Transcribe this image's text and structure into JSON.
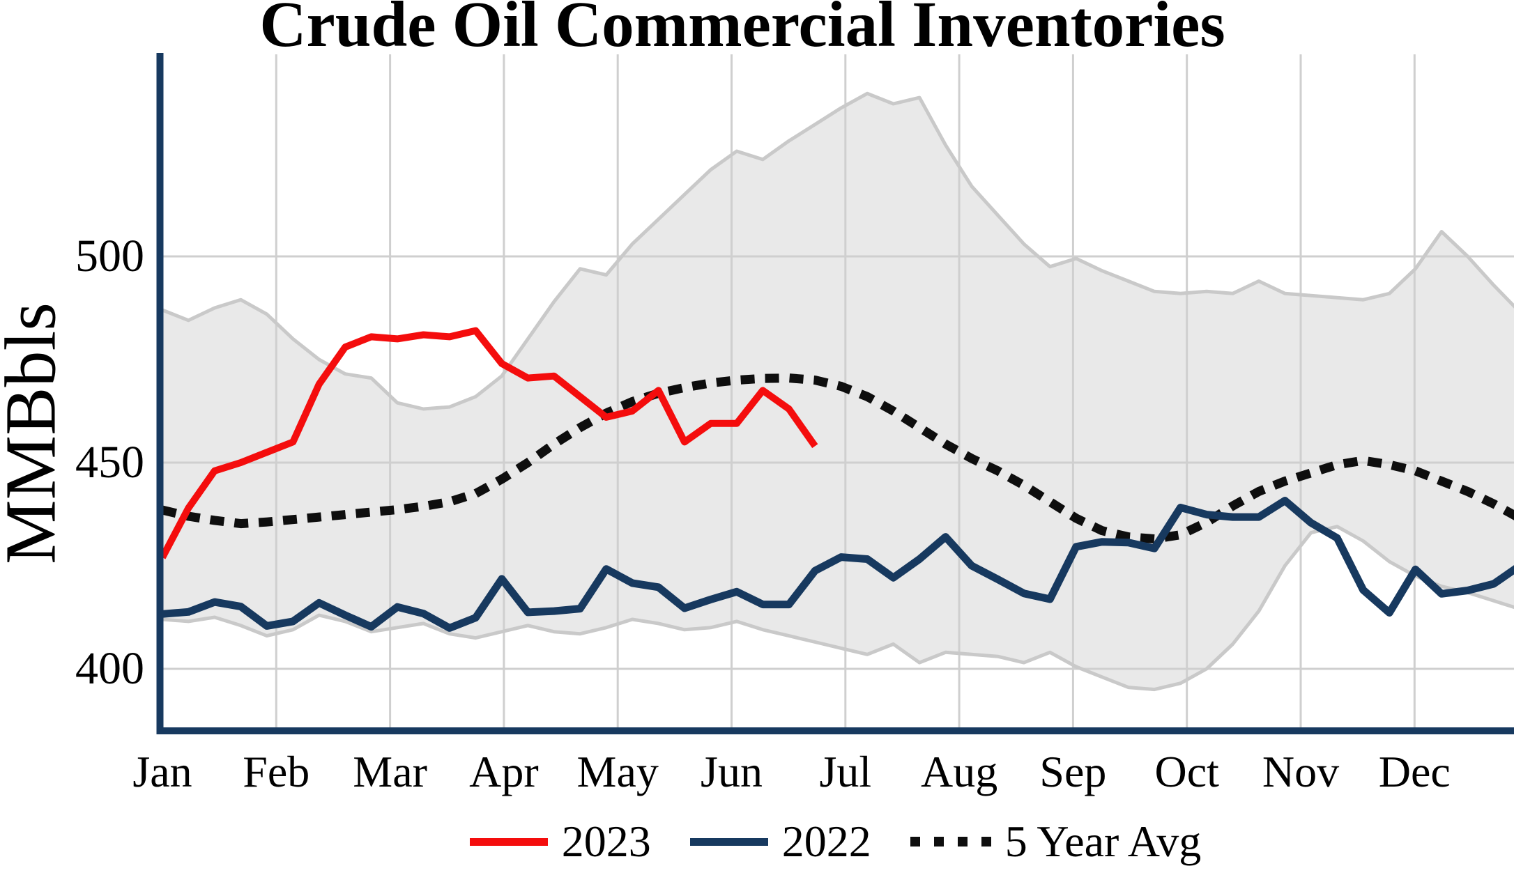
{
  "chart_data": {
    "type": "line",
    "title": "Crude Oil Commercial Inventories",
    "ylabel": "MMBbls",
    "x_tick_labels": [
      "Jan",
      "Feb",
      "Mar",
      "Apr",
      "May",
      "Jun",
      "Jul",
      "Aug",
      "Sep",
      "Oct",
      "Nov",
      "Dec"
    ],
    "y_ticks": [
      400,
      450,
      500
    ],
    "ylim": [
      385,
      549
    ],
    "x_unit": "week-of-year",
    "grid": true,
    "legend_position": "bottom-center",
    "grid_color": "#cfcfcf",
    "axis_color": "#17395f",
    "band": {
      "name": "5-year-range-band",
      "fill_color": "#e9e9e9",
      "edge_color": "#c9c9c9",
      "top": [
        487,
        484.5,
        487.5,
        489.5,
        486,
        480,
        475,
        471.5,
        470.5,
        464.5,
        463,
        463.5,
        466,
        471,
        480,
        489,
        497,
        495.5,
        503,
        509,
        515,
        521,
        525.5,
        523.5,
        528,
        532,
        536,
        539.5,
        537,
        538.5,
        527,
        517,
        510,
        503,
        497.5,
        499.5,
        496.5,
        494,
        491.5,
        491,
        491.5,
        491,
        494,
        491,
        490.5,
        490,
        489.5,
        491,
        497,
        506,
        500,
        493,
        486.5
      ],
      "bottom": [
        412,
        411.5,
        412.5,
        410.5,
        408,
        409.5,
        413,
        411.5,
        409,
        410,
        411,
        408.5,
        407.5,
        409,
        410.5,
        409,
        408.5,
        410,
        412,
        411,
        409.5,
        410,
        411.5,
        409.5,
        408,
        406.5,
        405,
        403.5,
        406,
        401.5,
        404,
        403.5,
        403,
        401.5,
        404,
        400.5,
        398,
        395.5,
        395,
        396.5,
        400,
        406,
        414,
        425,
        433,
        434.5,
        431,
        426,
        422.5,
        420,
        418.5,
        416.5,
        414.5
      ]
    },
    "series": [
      {
        "name": "2023",
        "color": "#f40d0d",
        "style": "solid",
        "line_width": 10,
        "values": [
          427,
          439,
          448,
          450,
          452.5,
          455,
          469,
          478,
          480.5,
          480,
          481,
          480.5,
          482,
          474,
          470.5,
          471,
          466,
          461,
          462.5,
          467.5,
          455,
          459.5,
          459.5,
          467.5,
          463,
          454
        ]
      },
      {
        "name": "2022",
        "color": "#17395f",
        "style": "solid",
        "line_width": 11,
        "values": [
          413.3,
          413.8,
          416.2,
          415.1,
          410.4,
          411.5,
          416.0,
          413.0,
          410.2,
          415.0,
          413.4,
          409.9,
          412.4,
          421.8,
          413.7,
          414.0,
          414.6,
          424.2,
          420.8,
          419.8,
          414.7,
          416.8,
          418.7,
          415.6,
          415.6,
          423.8,
          427.1,
          426.6,
          422.1,
          426.6,
          432.0,
          425.0,
          421.7,
          418.3,
          416.9,
          429.6,
          430.8,
          430.6,
          429.2,
          439.1,
          437.4,
          436.8,
          436.8,
          440.8,
          435.4,
          431.7,
          419.1,
          413.6,
          424.1,
          418.2,
          419.0,
          420.6,
          425.0
        ]
      },
      {
        "name": "5 Year Avg",
        "color": "#0e0e0e",
        "style": "dotted",
        "line_width": 13,
        "values": [
          438.5,
          437,
          436,
          435.2,
          435.6,
          436.2,
          436.8,
          437.4,
          438,
          438.6,
          439.4,
          440.5,
          442.5,
          446,
          450,
          454.5,
          458.5,
          462,
          464.8,
          466.8,
          468.2,
          469.3,
          470,
          470.4,
          470.5,
          470,
          468.5,
          466,
          462.5,
          458.5,
          454.5,
          451,
          448,
          444.5,
          440.5,
          436.5,
          433.5,
          432,
          431.5,
          432.5,
          435.5,
          439.5,
          443,
          445.5,
          447.5,
          449.5,
          450.5,
          449.5,
          448,
          445.5,
          443,
          440,
          436.5
        ]
      }
    ]
  }
}
